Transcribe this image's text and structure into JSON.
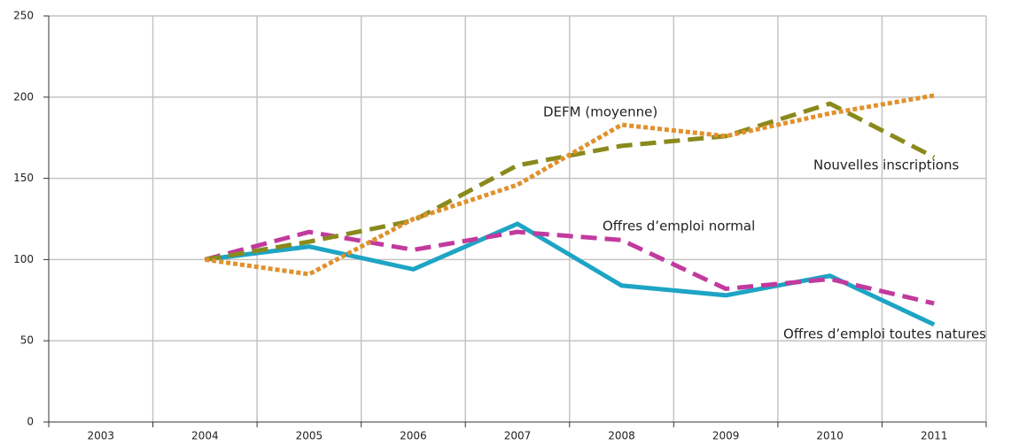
{
  "chart_data": {
    "type": "line",
    "categories": [
      "2003",
      "2004",
      "2005",
      "2006",
      "2007",
      "2008",
      "2009",
      "2010",
      "2011"
    ],
    "series": [
      {
        "name": "Offres d’emploi toutes natures",
        "color": "#1ea4c4",
        "style": "solid",
        "values": [
          null,
          100,
          108,
          94,
          122,
          84,
          78,
          90,
          60
        ]
      },
      {
        "name": "Offres d’emploi normal",
        "color": "#c23a9e",
        "style": "dashed",
        "values": [
          null,
          100,
          117,
          106,
          117,
          112,
          82,
          88,
          73
        ]
      },
      {
        "name": "Nouvelles inscriptions",
        "color": "#8a8a1c",
        "style": "dashed",
        "values": [
          null,
          100,
          111,
          124,
          158,
          170,
          176,
          196,
          163
        ]
      },
      {
        "name": "DEFM (moyenne)",
        "color": "#e0912c",
        "style": "dotted",
        "values": [
          null,
          100,
          91,
          125,
          146,
          183,
          176,
          190,
          201
        ]
      }
    ],
    "ylim": [
      0,
      250
    ],
    "yticks": [
      0,
      50,
      100,
      150,
      200,
      250
    ],
    "grid": true
  }
}
